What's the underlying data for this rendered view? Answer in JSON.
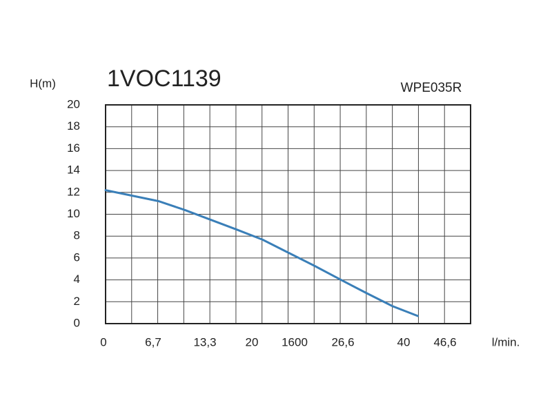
{
  "chart_data": {
    "type": "line",
    "title": "1VOC1139",
    "subtitle": "WPE035R",
    "y_label": "H(m)",
    "x_label": "l/min.",
    "x_tick_labels": [
      "0",
      "6,7",
      "13,3",
      "20",
      "1600",
      "26,6",
      "40",
      "46,6"
    ],
    "x": [
      0,
      7.1,
      10.6,
      14.1,
      17.6,
      21,
      24.5,
      28,
      31.6,
      35,
      38.5,
      41.9
    ],
    "series": [
      {
        "name": "WPE035R",
        "color": "#3a7fb8",
        "values": [
          12.2,
          11.2,
          10.4,
          9.5,
          8.6,
          7.7,
          6.5,
          5.3,
          4.0,
          2.8,
          1.6,
          0.7
        ]
      }
    ],
    "xlim": [
      0,
      49
    ],
    "ylim": [
      0,
      20
    ],
    "yticks": [
      0,
      2,
      4,
      6,
      8,
      10,
      12,
      14,
      16,
      18,
      20
    ],
    "grid": true
  }
}
